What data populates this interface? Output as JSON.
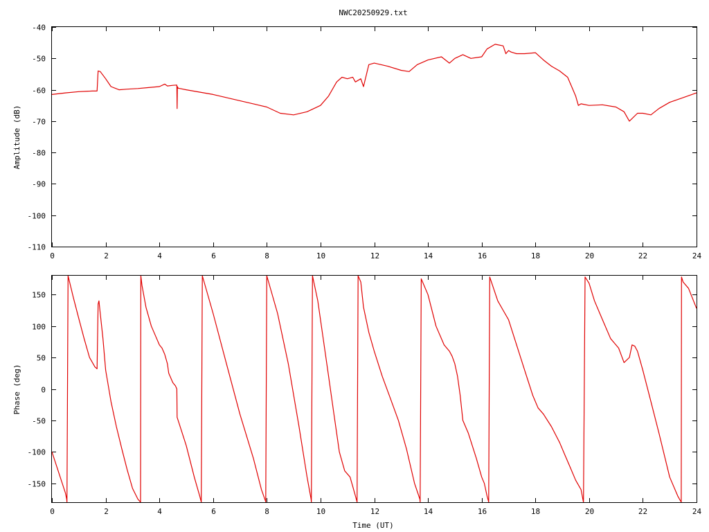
{
  "title": "NWC20250929.txt",
  "colors": {
    "series": "#e00000",
    "axes": "#000000"
  },
  "chart_data": [
    {
      "type": "line",
      "xlabel": "",
      "ylabel": "Amplitude (dB)",
      "xlim": [
        0,
        24
      ],
      "ylim": [
        -110,
        -40
      ],
      "xticks": [
        "0",
        "2",
        "4",
        "6",
        "8",
        "10",
        "12",
        "14",
        "16",
        "18",
        "20",
        "22",
        "24"
      ],
      "yticks": [
        "-40",
        "-50",
        "-60",
        "-70",
        "-80",
        "-90",
        "-100",
        "-110"
      ],
      "grid": false,
      "series": [
        {
          "x": [
            0,
            0.5,
            1.0,
            1.5,
            1.68,
            1.72,
            1.8,
            2.0,
            2.2,
            2.5,
            2.8,
            3.2,
            3.6,
            4.0,
            4.2,
            4.3,
            4.5,
            4.65,
            4.66,
            4.67,
            4.7,
            5.0,
            6.0,
            7.0,
            7.5,
            8.0,
            8.5,
            9.0,
            9.5,
            10.0,
            10.3,
            10.6,
            10.8,
            11.0,
            11.2,
            11.3,
            11.5,
            11.6,
            11.8,
            12.0,
            12.5,
            13.0,
            13.3,
            13.6,
            14.0,
            14.5,
            14.8,
            15.0,
            15.3,
            15.6,
            16.0,
            16.2,
            16.5,
            16.8,
            16.9,
            17.0,
            17.1,
            17.3,
            17.6,
            18.0,
            18.3,
            18.6,
            18.9,
            19.2,
            19.4,
            19.5,
            19.6,
            19.7,
            20.0,
            20.5,
            21.0,
            21.3,
            21.5,
            21.8,
            22.0,
            22.3,
            22.6,
            23.0,
            23.5,
            24.0
          ],
          "y": [
            -61.5,
            -61,
            -60.6,
            -60.4,
            -60.4,
            -54,
            -54.2,
            -56.5,
            -59,
            -60,
            -59.8,
            -59.6,
            -59.3,
            -59,
            -58.2,
            -58.8,
            -58.6,
            -58.5,
            -66,
            -59,
            -59.5,
            -60,
            -61.5,
            -63.5,
            -64.5,
            -65.5,
            -67.5,
            -68,
            -67,
            -65,
            -62,
            -57.5,
            -56,
            -56.5,
            -56,
            -57.5,
            -56.5,
            -59,
            -52,
            -51.5,
            -52.5,
            -53.8,
            -54.2,
            -52,
            -50.5,
            -49.5,
            -51.5,
            -50,
            -48.8,
            -50,
            -49.5,
            -47,
            -45.5,
            -46,
            -48.5,
            -47.5,
            -48,
            -48.5,
            -48.5,
            -48.2,
            -50.5,
            -52.5,
            -54,
            -56,
            -60,
            -62,
            -65,
            -64.5,
            -65,
            -64.8,
            -65.5,
            -67,
            -70,
            -67.5,
            -67.5,
            -68,
            -66,
            -64,
            -62.5,
            -61
          ]
        }
      ]
    },
    {
      "type": "line",
      "xlabel": "Time (UT)",
      "ylabel": "Phase (deg)",
      "xlim": [
        0,
        24
      ],
      "ylim": [
        -180,
        180
      ],
      "xticks": [
        "0",
        "2",
        "4",
        "6",
        "8",
        "10",
        "12",
        "14",
        "16",
        "18",
        "20",
        "22",
        "24"
      ],
      "yticks": [
        "150",
        "100",
        "50",
        "0",
        "-50",
        "-100",
        "-150"
      ],
      "grid": false,
      "series": [
        {
          "x": [
            0,
            0.5,
            0.55,
            0.56,
            0.6,
            0.8,
            1.0,
            1.2,
            1.4,
            1.6,
            1.68,
            1.7,
            1.72,
            1.75,
            1.8,
            1.9,
            2.0,
            2.2,
            2.4,
            2.6,
            2.8,
            3.0,
            3.2,
            3.3,
            3.31,
            3.35,
            3.5,
            3.7,
            3.9,
            4.0,
            4.1,
            4.2,
            4.3,
            4.35,
            4.5,
            4.6,
            4.65,
            4.66,
            4.7,
            5.0,
            5.3,
            5.5,
            5.55,
            5.56,
            5.6,
            6.0,
            6.5,
            7.0,
            7.5,
            7.8,
            7.95,
            7.96,
            8.0,
            8.4,
            8.8,
            9.2,
            9.5,
            9.65,
            9.66,
            9.7,
            9.9,
            10.1,
            10.3,
            10.5,
            10.7,
            10.9,
            11.1,
            11.2,
            11.3,
            11.35,
            11.36,
            11.4,
            11.5,
            11.6,
            11.8,
            12.0,
            12.3,
            12.6,
            12.9,
            13.2,
            13.5,
            13.7,
            13.71,
            13.75,
            14.0,
            14.3,
            14.6,
            14.8,
            14.9,
            15.0,
            15.1,
            15.2,
            15.3,
            15.5,
            15.8,
            16.0,
            16.1,
            16.2,
            16.25,
            16.26,
            16.3,
            16.6,
            16.8,
            17.0,
            17.3,
            17.6,
            17.9,
            18.1,
            18.3,
            18.6,
            18.9,
            19.1,
            19.3,
            19.5,
            19.7,
            19.78,
            19.79,
            19.85,
            20.0,
            20.2,
            20.5,
            20.8,
            21.1,
            21.3,
            21.5,
            21.6,
            21.7,
            21.8,
            22.0,
            22.3,
            22.6,
            23.0,
            23.3,
            23.43,
            23.44,
            23.5,
            23.7,
            24.0
          ],
          "y": [
            -100,
            -165,
            -175,
            -180,
            180,
            145,
            112,
            80,
            50,
            35,
            32,
            80,
            135,
            140,
            120,
            80,
            30,
            -20,
            -60,
            -95,
            -128,
            -158,
            -175,
            -180,
            180,
            165,
            130,
            100,
            80,
            70,
            65,
            55,
            40,
            25,
            10,
            5,
            0,
            -45,
            -50,
            -90,
            -140,
            -170,
            -178,
            -180,
            180,
            120,
            40,
            -40,
            -110,
            -160,
            -178,
            -180,
            180,
            120,
            40,
            -60,
            -140,
            -175,
            -180,
            180,
            140,
            80,
            20,
            -40,
            -100,
            -130,
            -140,
            -155,
            -170,
            -178,
            -180,
            180,
            170,
            130,
            90,
            60,
            20,
            -15,
            -50,
            -95,
            -150,
            -175,
            -180,
            175,
            150,
            100,
            70,
            60,
            52,
            40,
            20,
            -10,
            -50,
            -70,
            -110,
            -140,
            -150,
            -170,
            -178,
            -180,
            178,
            140,
            125,
            110,
            70,
            30,
            -10,
            -30,
            -40,
            -60,
            -85,
            -105,
            -125,
            -145,
            -160,
            -178,
            -180,
            178,
            168,
            140,
            110,
            80,
            65,
            42,
            50,
            70,
            68,
            60,
            30,
            -20,
            -70,
            -140,
            -170,
            -180,
            178,
            170,
            160,
            128
          ]
        }
      ]
    }
  ]
}
